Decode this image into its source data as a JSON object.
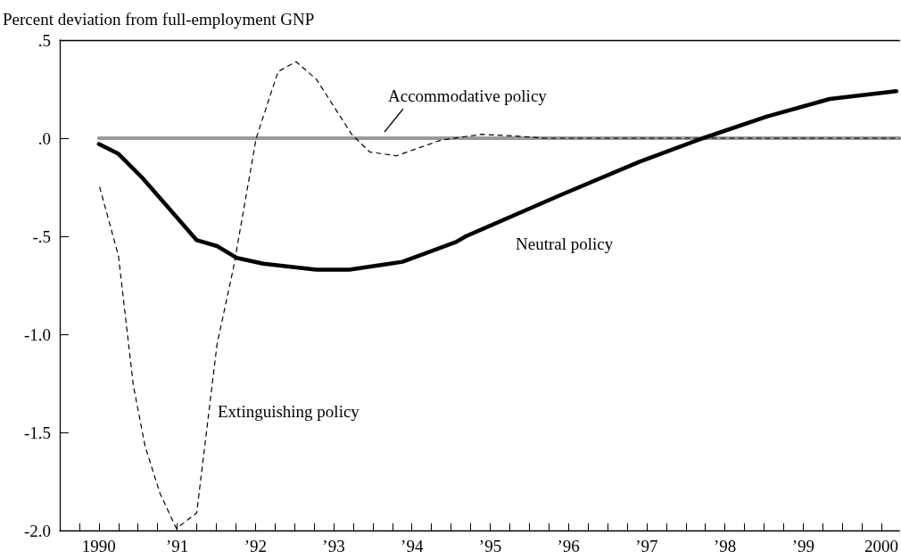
{
  "chart_data": {
    "type": "line",
    "ylabel": "Percent deviation from full-employment GNP",
    "marker": "none",
    "xlim": [
      1989.5,
      2000.23
    ],
    "ylim": [
      -2,
      0.5
    ],
    "yticks": [
      {
        "value": -2,
        "label": "-2.0"
      },
      {
        "value": -1.5,
        "label": "-1.5"
      },
      {
        "value": -1,
        "label": "-1.0"
      },
      {
        "value": -0.5,
        "label": "-.5"
      },
      {
        "value": 0,
        "label": ".0"
      },
      {
        "value": 0.5,
        "label": ".5"
      }
    ],
    "xticks": [
      {
        "value": 1989.5,
        "label": null
      },
      {
        "value": 1989.75,
        "label": null
      },
      {
        "value": 1990,
        "label": "1990"
      },
      {
        "value": 1990.25,
        "label": null
      },
      {
        "value": 1990.5,
        "label": null
      },
      {
        "value": 1990.75,
        "label": null
      },
      {
        "value": 1991,
        "label": "’91"
      },
      {
        "value": 1991.25,
        "label": null
      },
      {
        "value": 1991.5,
        "label": null
      },
      {
        "value": 1991.75,
        "label": null
      },
      {
        "value": 1992,
        "label": "’92"
      },
      {
        "value": 1992.25,
        "label": null
      },
      {
        "value": 1992.5,
        "label": null
      },
      {
        "value": 1992.75,
        "label": null
      },
      {
        "value": 1993,
        "label": "’93"
      },
      {
        "value": 1993.25,
        "label": null
      },
      {
        "value": 1993.5,
        "label": null
      },
      {
        "value": 1993.75,
        "label": null
      },
      {
        "value": 1994,
        "label": "’94"
      },
      {
        "value": 1994.25,
        "label": null
      },
      {
        "value": 1994.5,
        "label": null
      },
      {
        "value": 1994.75,
        "label": null
      },
      {
        "value": 1995,
        "label": "’95"
      },
      {
        "value": 1995.25,
        "label": null
      },
      {
        "value": 1995.5,
        "label": null
      },
      {
        "value": 1995.75,
        "label": null
      },
      {
        "value": 1996,
        "label": "’96"
      },
      {
        "value": 1996.25,
        "label": null
      },
      {
        "value": 1996.5,
        "label": null
      },
      {
        "value": 1996.75,
        "label": null
      },
      {
        "value": 1997,
        "label": "’97"
      },
      {
        "value": 1997.25,
        "label": null
      },
      {
        "value": 1997.5,
        "label": null
      },
      {
        "value": 1997.75,
        "label": null
      },
      {
        "value": 1998,
        "label": "’98"
      },
      {
        "value": 1998.25,
        "label": null
      },
      {
        "value": 1998.5,
        "label": null
      },
      {
        "value": 1998.75,
        "label": null
      },
      {
        "value": 1999,
        "label": "’99"
      },
      {
        "value": 1999.25,
        "label": null
      },
      {
        "value": 1999.5,
        "label": null
      },
      {
        "value": 1999.75,
        "label": null
      },
      {
        "value": 2000,
        "label": "2000"
      }
    ],
    "series": [
      {
        "name": "Accommodative policy",
        "color": "#999999",
        "line_style": "solid",
        "x": [
          1990,
          2000.23
        ],
        "values": [
          0,
          0
        ]
      },
      {
        "name": "Neutral policy",
        "color": "#000000",
        "line_style": "solid",
        "x": [
          1990,
          1990.25,
          1990.55,
          1990.66,
          1991.25,
          1991.51,
          1991.76,
          1992.1,
          1992.78,
          1993.2,
          1993.72,
          1993.88,
          1994.56,
          1994.69,
          1995.9,
          1996.91,
          1997.72,
          1998.53,
          1999.34,
          2000.19
        ],
        "values": [
          -0.03,
          -0.08,
          -0.2,
          -0.25,
          -0.52,
          -0.55,
          -0.61,
          -0.64,
          -0.67,
          -0.67,
          -0.64,
          -0.63,
          -0.53,
          -0.5,
          -0.29,
          -0.12,
          0,
          0.11,
          0.2,
          0.24
        ]
      },
      {
        "name": "Extinguishing policy",
        "color": "#000000",
        "line_style": "dashed",
        "x": [
          1990.01,
          1990.25,
          1990.44,
          1990.59,
          1990.78,
          1990.99,
          1991.25,
          1991.51,
          1991.72,
          1992.01,
          1992.29,
          1992.52,
          1992.78,
          1993.23,
          1993.46,
          1993.8,
          1994.37,
          1994.89,
          1995.37,
          1995.69,
          2000.23
        ],
        "values": [
          -0.25,
          -0.6,
          -1.26,
          -1.57,
          -1.81,
          -1.99,
          -1.91,
          -1.05,
          -0.66,
          0,
          0.34,
          0.39,
          0.3,
          0.02,
          -0.07,
          -0.09,
          -0.01,
          0.02,
          0.01,
          0,
          0
        ]
      }
    ]
  }
}
